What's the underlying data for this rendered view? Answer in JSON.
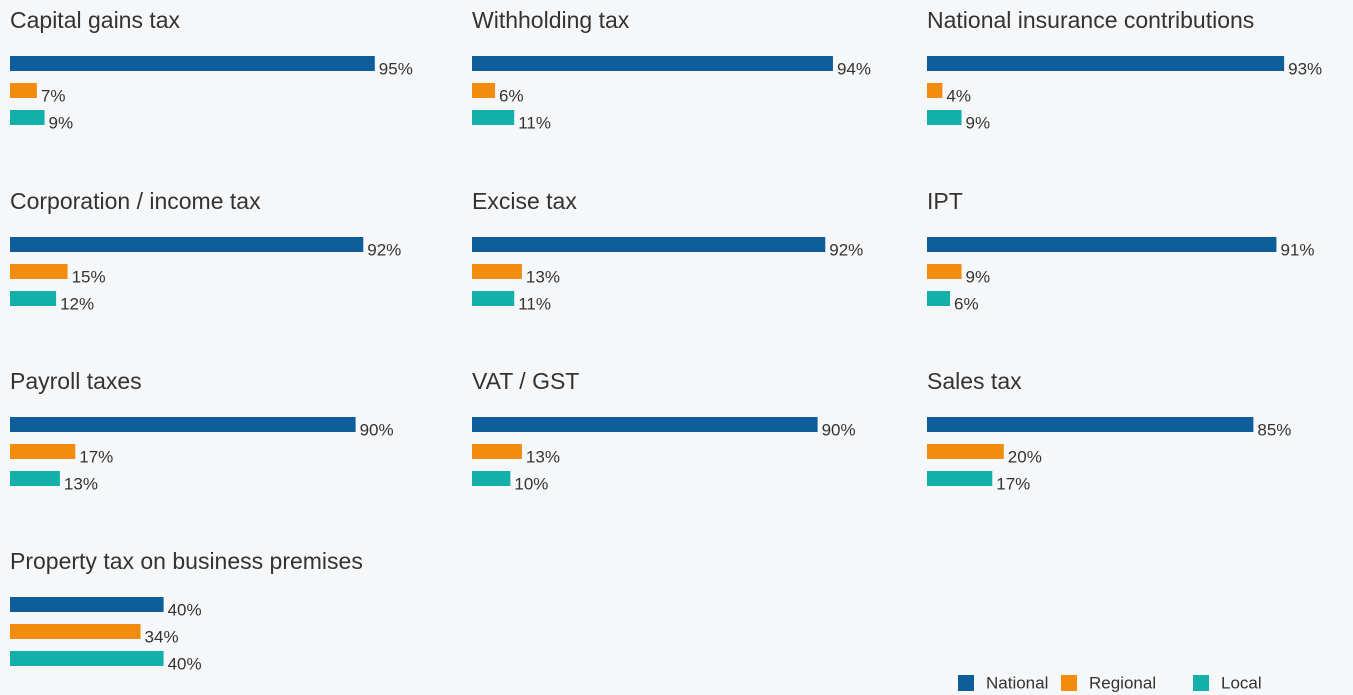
{
  "chart_data": {
    "type": "bar",
    "categories": [
      "Capital gains tax",
      "Withholding tax",
      "National insurance contributions",
      "Corporation / income tax",
      "Excise tax",
      "IPT",
      "Payroll taxes",
      "VAT / GST",
      "Sales tax",
      "Property tax on business premises"
    ],
    "series": [
      {
        "name": "National",
        "color": "#0f5e9c",
        "values": [
          95,
          94,
          93,
          92,
          92,
          91,
          90,
          90,
          85,
          40
        ],
        "value_labels": [
          "95%",
          "94%",
          "93%",
          "92%",
          "92%",
          "91%",
          "90%",
          "90%",
          "85%",
          "40%"
        ]
      },
      {
        "name": "Regional",
        "color": "#f28c0f",
        "values": [
          7,
          6,
          4,
          15,
          13,
          9,
          17,
          13,
          20,
          34
        ],
        "value_labels": [
          "7%",
          "6%",
          "4%",
          "15%",
          "13%",
          "9%",
          "17%",
          "13%",
          "20%",
          "34%"
        ]
      },
      {
        "name": "Local",
        "color": "#12b0a8",
        "values": [
          9,
          11,
          9,
          12,
          11,
          6,
          13,
          10,
          17,
          40
        ],
        "value_labels": [
          "9%",
          "11%",
          "9%",
          "12%",
          "11%",
          "6%",
          "13%",
          "10%",
          "17%",
          "40%"
        ]
      }
    ],
    "legend": "bottom-right"
  }
}
